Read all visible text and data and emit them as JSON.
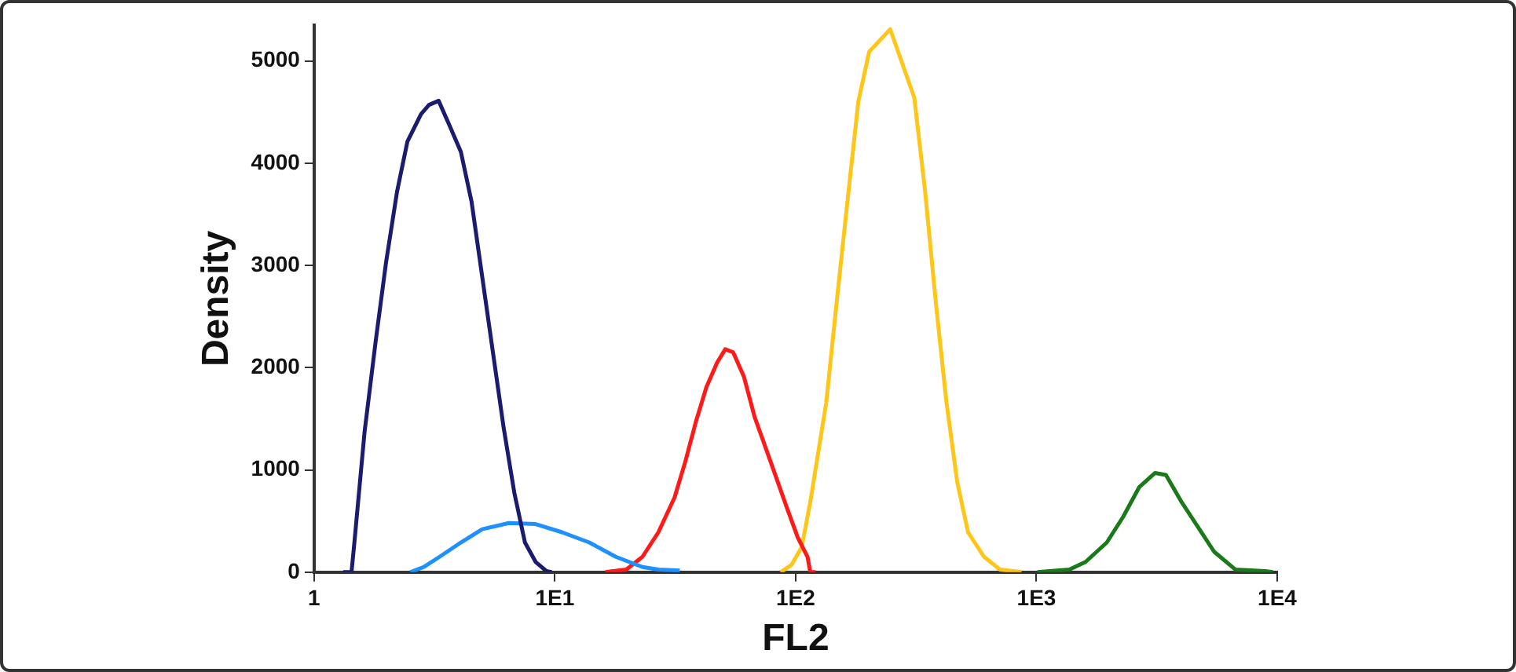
{
  "chart_data": {
    "type": "line",
    "xlabel": "FL2",
    "ylabel": "Density",
    "log": "x",
    "grid": false,
    "legend": false,
    "marker": "none",
    "line_style": "solid",
    "xlim": [
      1,
      10000
    ],
    "xticks": [
      {
        "value": 1,
        "label": "1"
      },
      {
        "value": 10,
        "label": "1E1"
      },
      {
        "value": 100,
        "label": "1E2"
      },
      {
        "value": 1000,
        "label": "1E3"
      },
      {
        "value": 10000,
        "label": "1E4"
      }
    ],
    "ylim": [
      0,
      5350
    ],
    "yticks": [
      0,
      1000,
      2000,
      3000,
      4000,
      5000
    ],
    "series": [
      {
        "color": "#1b1b6f",
        "x": [
          1.32,
          1.43,
          1.47,
          1.62,
          1.8,
          1.99,
          2.21,
          2.44,
          2.78,
          3.0,
          3.29,
          3.68,
          4.07,
          4.51,
          4.99,
          5.53,
          6.12,
          6.78,
          7.51,
          8.32,
          9.22,
          9.7
        ],
        "values": [
          0,
          0,
          290,
          1370,
          2250,
          3030,
          3720,
          4210,
          4480,
          4570,
          4610,
          4350,
          4110,
          3620,
          2890,
          2150,
          1420,
          780,
          290,
          100,
          10,
          0
        ]
      },
      {
        "color": "#1e90ff",
        "x": [
          2.51,
          2.85,
          3.32,
          4.07,
          4.99,
          6.44,
          8.32,
          10.7,
          13.9,
          17.9,
          23.1,
          26.9,
          33.0
        ],
        "values": [
          0,
          50,
          150,
          290,
          420,
          480,
          470,
          390,
          290,
          150,
          50,
          25,
          15
        ]
      },
      {
        "color": "#ff1a1a",
        "x": [
          16.2,
          19.8,
          23.1,
          26.9,
          31.4,
          34.8,
          38.5,
          42.6,
          47.2,
          51.0,
          55.0,
          61.0,
          67.5,
          78.7,
          91.6,
          102,
          112,
          115,
          121
        ],
        "values": [
          0,
          25,
          150,
          390,
          730,
          1080,
          1470,
          1810,
          2050,
          2180,
          2150,
          1910,
          1520,
          1080,
          640,
          340,
          150,
          0,
          0
        ]
      },
      {
        "color": "#ffc61a",
        "x": [
          86.6,
          96.0,
          106,
          115,
          134,
          148,
          164,
          182,
          202,
          247,
          311,
          345,
          382,
          423,
          469,
          520,
          606,
          706,
          867
        ],
        "values": [
          0,
          70,
          245,
          685,
          1660,
          2640,
          3620,
          4600,
          5090,
          5310,
          4640,
          3720,
          2640,
          1660,
          880,
          390,
          150,
          25,
          0
        ]
      },
      {
        "color": "#1a7a1a",
        "x": [
          1010,
          1370,
          1600,
          1960,
          2290,
          2670,
          3110,
          3450,
          4020,
          4690,
          5470,
          6710,
          8900,
          9600
        ],
        "values": [
          0,
          25,
          100,
          290,
          540,
          830,
          970,
          950,
          680,
          440,
          200,
          25,
          10,
          0
        ]
      }
    ]
  }
}
